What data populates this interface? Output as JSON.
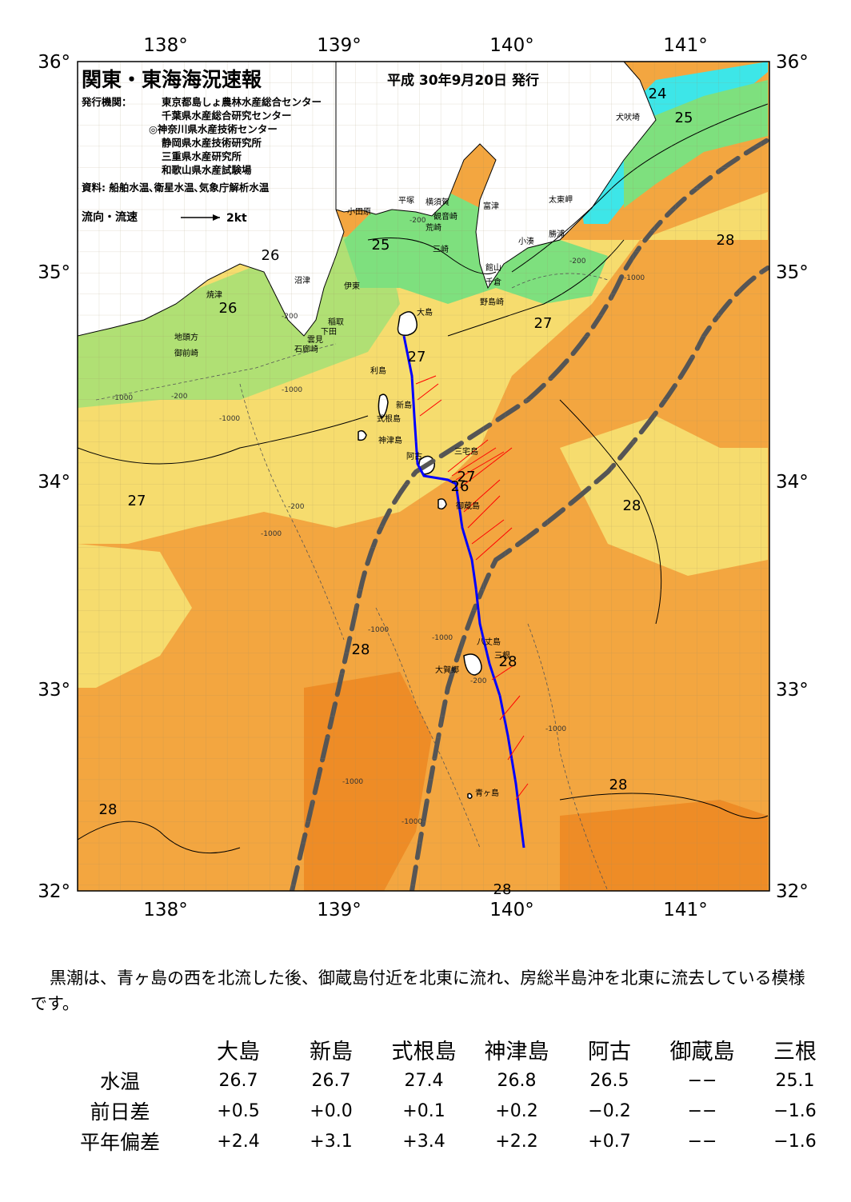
{
  "header": {
    "title": "関東・東海海況速報",
    "date": "平成 30年9月20日 発行",
    "publisher_label": "発行機関：",
    "publishers": [
      "東京都島しょ農林水産総合センター",
      "千葉県水産総合研究センター",
      "◎神奈川県水産技術センター",
      "静岡県水産技術研究所",
      "三重県水産研究所",
      "和歌山県水産試験場"
    ],
    "source": "資料: 船舶水温､衛星水温､気象庁解析水温",
    "legend_label": "流向・流速",
    "legend_unit": "2kt"
  },
  "axes": {
    "lon_ticks": [
      "138°",
      "139°",
      "140°",
      "141°"
    ],
    "lat_ticks": [
      "36°",
      "35°",
      "34°",
      "33°",
      "32°"
    ]
  },
  "temperature_labels": [
    "24",
    "25",
    "25",
    "26",
    "26",
    "27",
    "27",
    "27",
    "27",
    "28",
    "28",
    "28",
    "28",
    "28",
    "28",
    "28",
    "26"
  ],
  "place_names": [
    "犬吠埼",
    "太東岬",
    "勝浦",
    "小湊",
    "富津",
    "横須賀",
    "観音崎",
    "荒崎",
    "三崎",
    "館山",
    "千倉",
    "野島崎",
    "平塚",
    "小田原",
    "伊東",
    "大島",
    "沼津",
    "焼津",
    "稲取",
    "下田",
    "雲見",
    "石廊崎",
    "地頭方",
    "御前崎",
    "利島",
    "新島",
    "式根島",
    "神津島",
    "阿古",
    "三宅島",
    "御蔵島",
    "八丈島",
    "三根",
    "大賀郷",
    "青ヶ島"
  ],
  "depth_labels": [
    "-200",
    "-1000"
  ],
  "colors": {
    "land": "#ffffff",
    "sea_24": "#3de6e8",
    "sea_25": "#7ee07e",
    "sea_26": "#b0e074",
    "sea_27": "#f6dc6e",
    "sea_28": "#f3a640",
    "sea_29": "#ee8c26",
    "kuroshio": "#555555",
    "ship_track": "#0000ff",
    "current_arrow": "#ff0000"
  },
  "summary": "黒潮は、青ヶ島の西を北流した後、御蔵島付近を北東に流れ、房総半島沖を北東に流去している模様です。",
  "table": {
    "columns": [
      "大島",
      "新島",
      "式根島",
      "神津島",
      "阿古",
      "御蔵島",
      "三根"
    ],
    "rows": [
      {
        "label": "水温",
        "values": [
          "26.7",
          "26.7",
          "27.4",
          "26.8",
          "26.5",
          "−−",
          "25.1"
        ]
      },
      {
        "label": "前日差",
        "values": [
          "+0.5",
          "+0.0",
          "+0.1",
          "+0.2",
          "−0.2",
          "−−",
          "−1.6"
        ]
      },
      {
        "label": "平年偏差",
        "values": [
          "+2.4",
          "+3.1",
          "+3.4",
          "+2.2",
          "+0.7",
          "−−",
          "−1.6"
        ]
      }
    ]
  }
}
